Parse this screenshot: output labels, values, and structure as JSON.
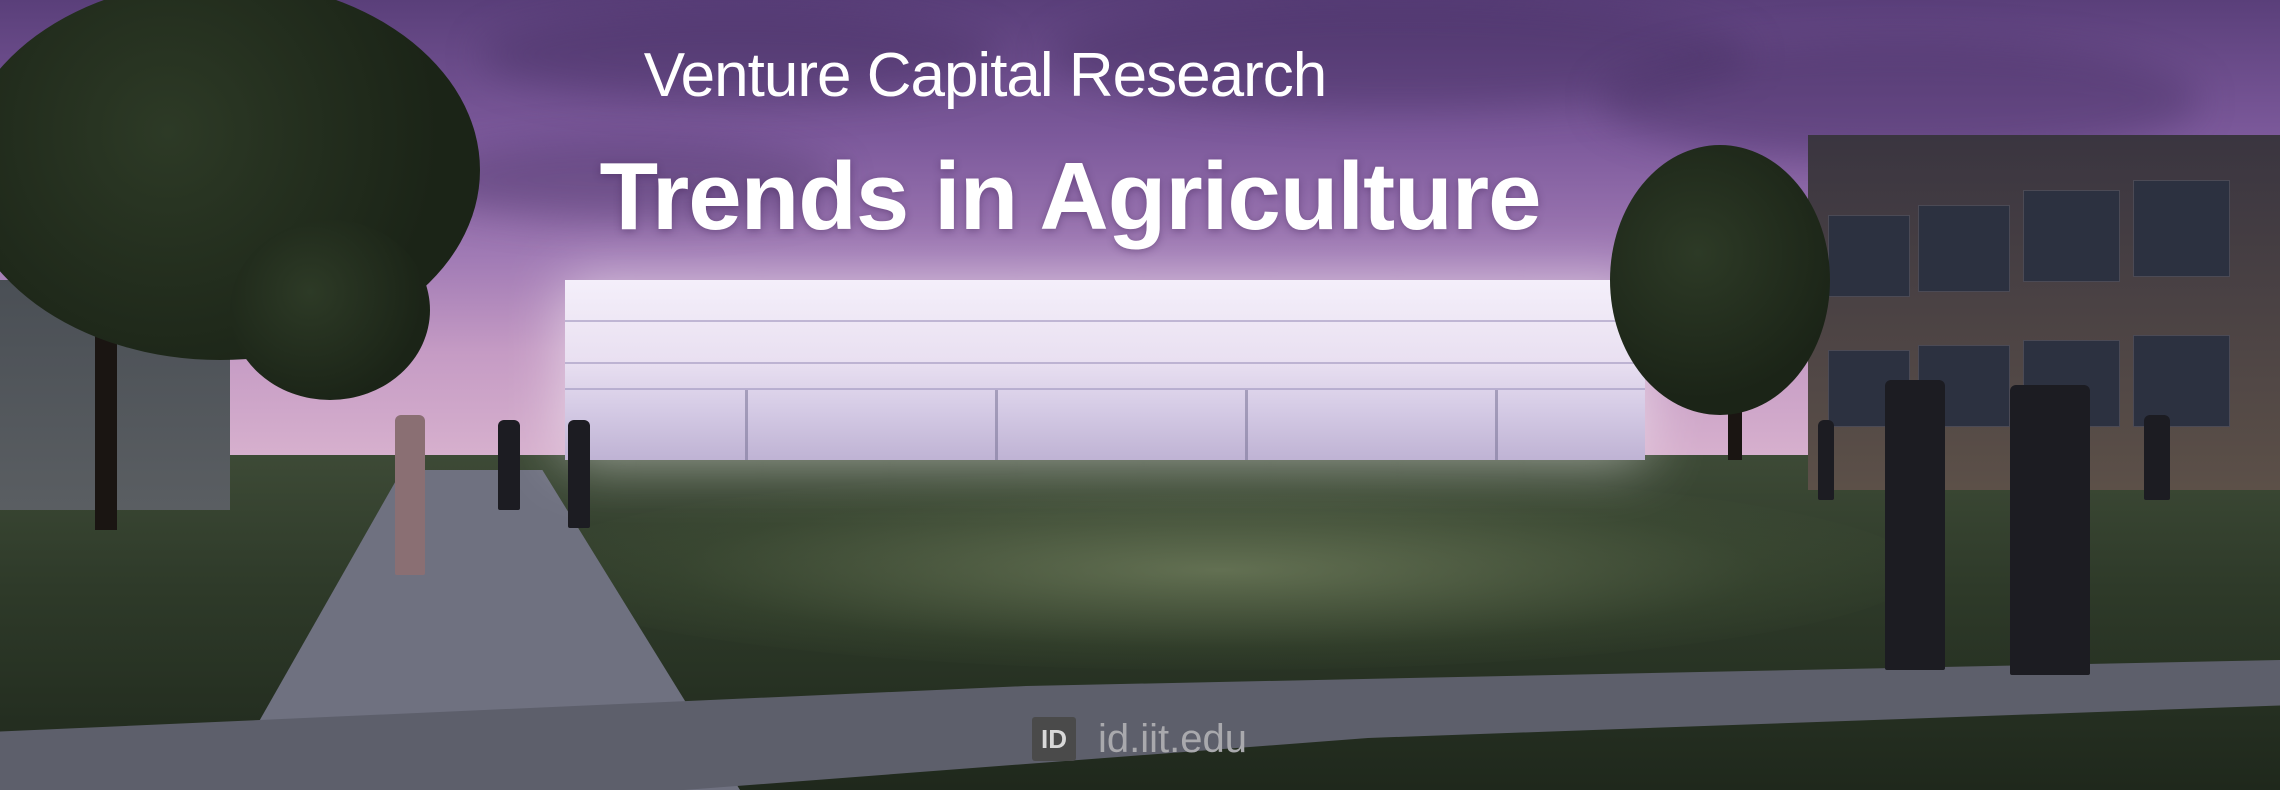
{
  "banner": {
    "subtitle": "Venture Capital Research",
    "title": "Trends in Agriculture"
  },
  "watermark": {
    "logo_text": "ID",
    "url_text": "id.iit.edu"
  },
  "colors": {
    "sky_top": "#5a3f7a",
    "sky_bottom": "#d9b3cf",
    "title_text": "#ffffff",
    "watermark_text": "#a9a9ad"
  }
}
